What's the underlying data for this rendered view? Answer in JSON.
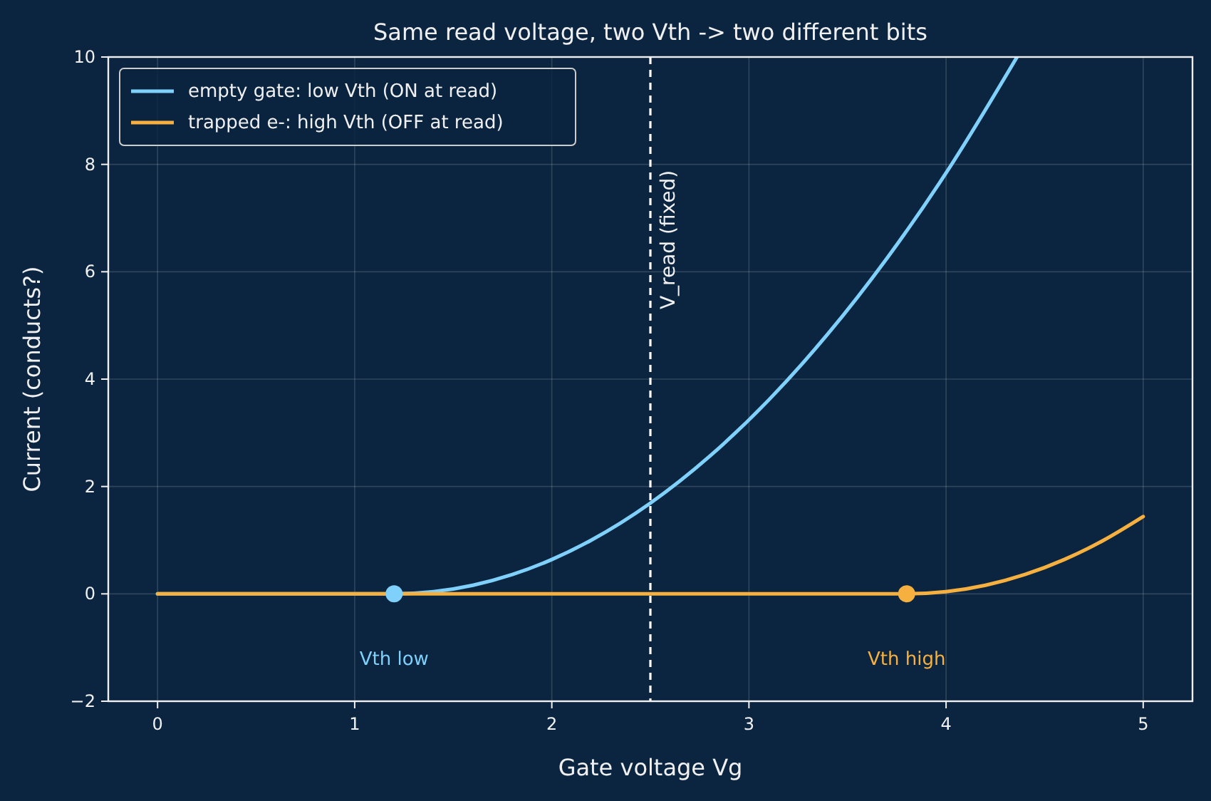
{
  "chart_data": {
    "type": "line",
    "title": "Same read voltage, two Vth -> two different bits",
    "xlabel": "Gate voltage Vg",
    "ylabel": "Current (conducts?)",
    "xlim": [
      -0.25,
      5.25
    ],
    "ylim": [
      -2,
      10
    ],
    "xticks": [
      0,
      1,
      2,
      3,
      4,
      5
    ],
    "yticks": [
      {
        "value": -2,
        "label": "−2"
      },
      0,
      2,
      4,
      6,
      8,
      10
    ],
    "grid": true,
    "legend": "top left",
    "line_style": "solid",
    "series": [
      {
        "name": "empty gate: low Vth (ON at read)",
        "color": "#7fd0fb",
        "x": [
          0,
          1.2,
          1.4,
          1.6,
          1.8,
          2.0,
          2.2,
          2.5,
          2.8,
          3.1,
          3.4,
          3.7,
          4.0,
          4.36
        ],
        "values": [
          0,
          0,
          0.04,
          0.16,
          0.36,
          0.64,
          1.0,
          1.69,
          2.56,
          3.61,
          4.84,
          6.25,
          7.84,
          10.0
        ]
      },
      {
        "name": "trapped e-: high Vth (OFF at read)",
        "color": "#f6b040",
        "x": [
          0,
          3.8,
          4.0,
          4.2,
          4.4,
          4.6,
          4.8,
          5.0
        ],
        "values": [
          0,
          0,
          0.04,
          0.16,
          0.36,
          0.64,
          1.0,
          1.44
        ]
      },
      {
        "type": "scatter",
        "marker": "circle",
        "color": "#7fd0fb",
        "x": [
          1.2
        ],
        "values": [
          0
        ]
      },
      {
        "type": "scatter",
        "marker": "circle",
        "color": "#f6b040",
        "x": [
          3.8
        ],
        "values": [
          0
        ]
      }
    ],
    "ref_lines": [
      {
        "axis": "x",
        "value": 2.5,
        "label": "V_read (fixed)",
        "color": "#ffffff",
        "line_style": "dashed"
      }
    ],
    "annotations": [
      "Vth low",
      "Vth high"
    ]
  }
}
